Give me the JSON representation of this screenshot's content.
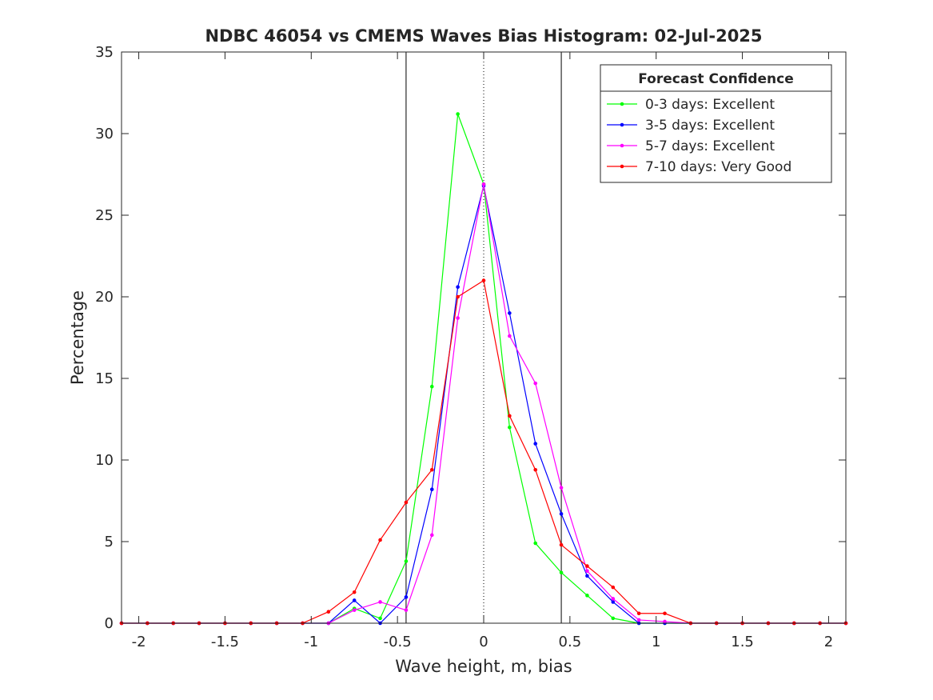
{
  "chart_data": {
    "type": "line",
    "title": "NDBC 46054 vs CMEMS Waves Bias Histogram: 02-Jul-2025",
    "xlabel": "Wave height, m, bias",
    "ylabel": "Percentage",
    "xlim": [
      -2.1,
      2.1
    ],
    "ylim": [
      0,
      35
    ],
    "xticks": [
      -2,
      -1.5,
      -1,
      -0.5,
      0,
      0.5,
      1,
      1.5,
      2
    ],
    "xtick_labels": [
      "-2",
      "-1.5",
      "-1",
      "-0.5",
      "0",
      "0.5",
      "1",
      "1.5",
      "2"
    ],
    "yticks": [
      0,
      5,
      10,
      15,
      20,
      25,
      30,
      35
    ],
    "ytick_labels": [
      "0",
      "5",
      "10",
      "15",
      "20",
      "25",
      "30",
      "35"
    ],
    "grid": false,
    "legend_title": "Forecast Confidence",
    "legend_position": "top-right",
    "reference_lines": [
      {
        "x": -0.45,
        "style": "solid",
        "color": "#000000"
      },
      {
        "x": 0,
        "style": "dotted",
        "color": "#000000"
      },
      {
        "x": 0.45,
        "style": "solid",
        "color": "#000000"
      }
    ],
    "x": [
      -2.1,
      -1.95,
      -1.8,
      -1.65,
      -1.5,
      -1.35,
      -1.2,
      -1.05,
      -0.9,
      -0.75,
      -0.6,
      -0.45,
      -0.3,
      -0.15,
      0,
      0.15,
      0.3,
      0.45,
      0.6,
      0.75,
      0.9,
      1.05,
      1.2,
      1.35,
      1.5,
      1.65,
      1.8,
      1.95,
      2.1
    ],
    "series": [
      {
        "name": "0-3 days: Excellent",
        "color": "#00ff00",
        "values": [
          0,
          0,
          0,
          0,
          0,
          0,
          0,
          0,
          0,
          0.9,
          0.3,
          3.8,
          14.5,
          31.2,
          26.9,
          12.0,
          4.9,
          3.1,
          1.7,
          0.3,
          0,
          0,
          0,
          0,
          0,
          0,
          0,
          0,
          0
        ]
      },
      {
        "name": "3-5 days: Excellent",
        "color": "#0000ff",
        "values": [
          0,
          0,
          0,
          0,
          0,
          0,
          0,
          0,
          0,
          1.4,
          0,
          1.6,
          8.2,
          20.6,
          26.8,
          19.0,
          11.0,
          6.7,
          2.9,
          1.3,
          0,
          0,
          0,
          0,
          0,
          0,
          0,
          0,
          0
        ]
      },
      {
        "name": "5-7 days: Excellent",
        "color": "#ff00ff",
        "values": [
          0,
          0,
          0,
          0,
          0,
          0,
          0,
          0,
          0,
          0.8,
          1.3,
          0.8,
          5.4,
          18.7,
          26.9,
          17.6,
          14.7,
          8.3,
          3.2,
          1.5,
          0.2,
          0.1,
          0,
          0,
          0,
          0,
          0,
          0,
          0
        ]
      },
      {
        "name": "7-10 days: Very Good",
        "color": "#ff0000",
        "values": [
          0,
          0,
          0,
          0,
          0,
          0,
          0,
          0,
          0.7,
          1.9,
          5.1,
          7.4,
          9.4,
          20.0,
          21.0,
          12.7,
          9.4,
          4.8,
          3.5,
          2.2,
          0.6,
          0.6,
          0,
          0,
          0,
          0,
          0,
          0,
          0
        ]
      }
    ]
  }
}
